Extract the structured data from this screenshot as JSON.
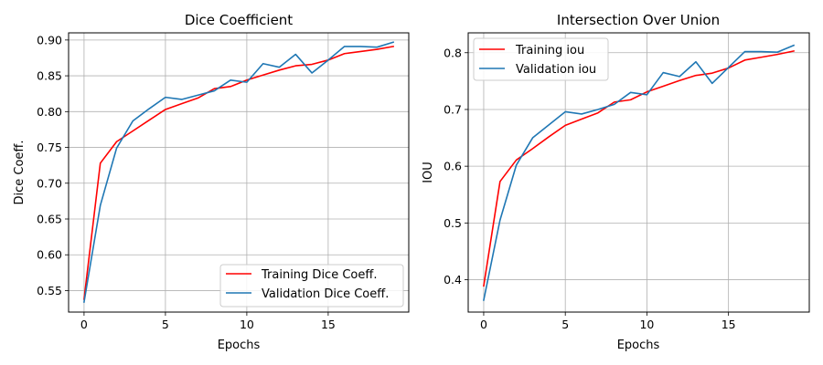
{
  "chart_data": [
    {
      "type": "line",
      "title": "Dice Coefficient",
      "xlabel": "Epochs",
      "ylabel": "Dice Coeff.",
      "xlim": [
        -0.95,
        19.95
      ],
      "ylim": [
        0.52,
        0.91
      ],
      "xticks": [
        0,
        5,
        10,
        15
      ],
      "yticks": [
        0.55,
        0.6,
        0.65,
        0.7,
        0.75,
        0.8,
        0.85,
        0.9
      ],
      "ytick_labels": [
        "0.55",
        "0.60",
        "0.65",
        "0.70",
        "0.75",
        "0.80",
        "0.85",
        "0.90"
      ],
      "grid": true,
      "legend_position": "lower-right",
      "x": [
        0,
        1,
        2,
        3,
        4,
        5,
        6,
        7,
        8,
        9,
        10,
        11,
        12,
        13,
        14,
        15,
        16,
        17,
        18,
        19
      ],
      "series": [
        {
          "name": "Training Dice Coeff.",
          "color": "#ff0000",
          "values": [
            0.538,
            0.728,
            0.758,
            0.773,
            0.788,
            0.803,
            0.811,
            0.819,
            0.832,
            0.835,
            0.844,
            0.851,
            0.858,
            0.864,
            0.866,
            0.872,
            0.881,
            0.884,
            0.887,
            0.891
          ]
        },
        {
          "name": "Validation Dice Coeff.",
          "color": "#1f77b4",
          "values": [
            0.534,
            0.669,
            0.749,
            0.787,
            0.804,
            0.82,
            0.817,
            0.823,
            0.829,
            0.844,
            0.841,
            0.867,
            0.862,
            0.88,
            0.854,
            0.872,
            0.891,
            0.891,
            0.89,
            0.897
          ]
        }
      ]
    },
    {
      "type": "line",
      "title": "Intersection Over Union",
      "xlabel": "Epochs",
      "ylabel": "IOU",
      "xlim": [
        -0.95,
        19.95
      ],
      "ylim": [
        0.343,
        0.835
      ],
      "xticks": [
        0,
        5,
        10,
        15
      ],
      "yticks": [
        0.4,
        0.5,
        0.6,
        0.7,
        0.8
      ],
      "ytick_labels": [
        "0.4",
        "0.5",
        "0.6",
        "0.7",
        "0.8"
      ],
      "grid": true,
      "legend_position": "upper-left",
      "x": [
        0,
        1,
        2,
        3,
        4,
        5,
        6,
        7,
        8,
        9,
        10,
        11,
        12,
        13,
        14,
        15,
        16,
        17,
        18,
        19
      ],
      "series": [
        {
          "name": "Training iou",
          "color": "#ff0000",
          "values": [
            0.389,
            0.573,
            0.611,
            0.631,
            0.652,
            0.672,
            0.683,
            0.694,
            0.713,
            0.717,
            0.731,
            0.741,
            0.751,
            0.76,
            0.764,
            0.773,
            0.787,
            0.792,
            0.797,
            0.803
          ]
        },
        {
          "name": "Validation iou",
          "color": "#1f77b4",
          "values": [
            0.364,
            0.505,
            0.602,
            0.65,
            0.673,
            0.696,
            0.692,
            0.7,
            0.709,
            0.73,
            0.726,
            0.765,
            0.758,
            0.784,
            0.746,
            0.774,
            0.802,
            0.802,
            0.801,
            0.813
          ]
        }
      ]
    }
  ]
}
